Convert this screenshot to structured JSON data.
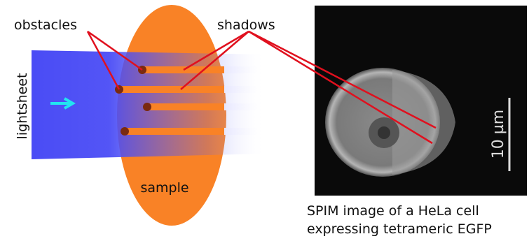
{
  "labels": {
    "obstacles": "obstacles",
    "shadows": "shadows",
    "lightsheet": "lightsheet",
    "sample": "sample",
    "scale_bar": "10 µm"
  },
  "caption": {
    "lines": [
      "SPIM image of a HeLa cell",
      "expressing tetrameric EGFP"
    ]
  }
}
